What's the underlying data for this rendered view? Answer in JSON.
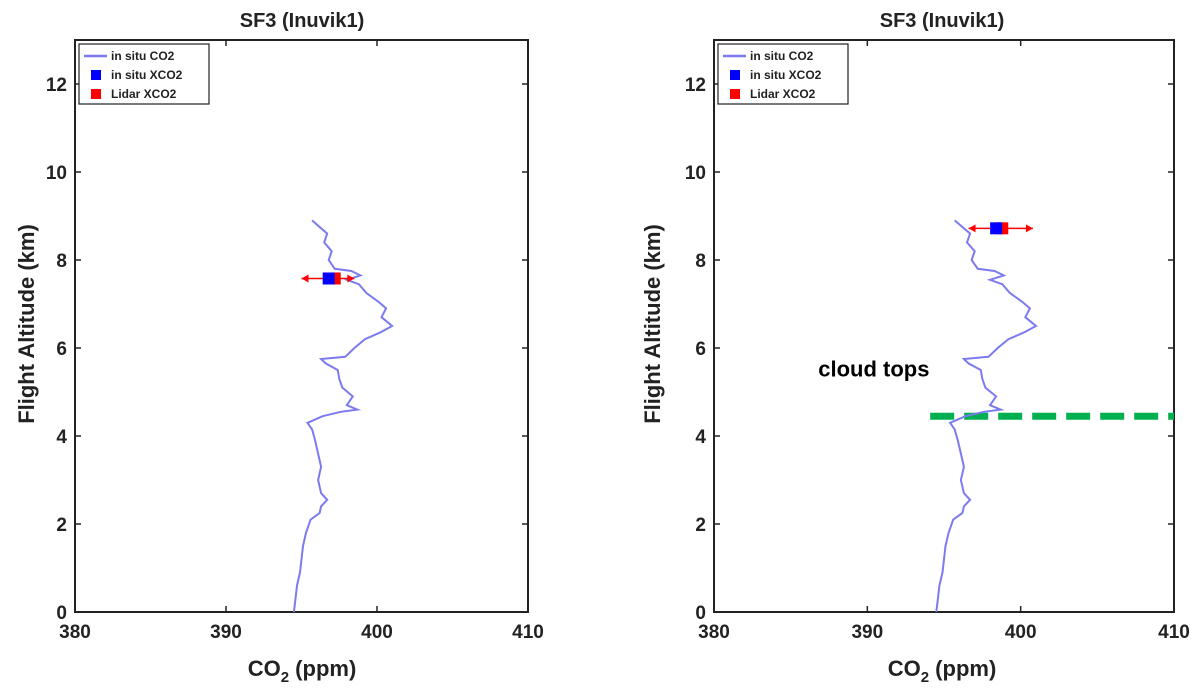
{
  "chart_data": [
    {
      "type": "line",
      "title": "SF3 (Inuvik1)",
      "xlabel": "CO2 (ppm)",
      "ylabel": "Flight Altitude (km)",
      "xlim": [
        380,
        410
      ],
      "ylim": [
        0,
        13
      ],
      "xticks": [
        "380",
        "390",
        "400",
        "410"
      ],
      "yticks": [
        "0",
        "2",
        "4",
        "6",
        "8",
        "10",
        "12"
      ],
      "grid": false,
      "legend_position": "top-left",
      "legend": [
        "in situ CO2",
        "in situ XCO2",
        "Lidar XCO2"
      ],
      "series": [
        {
          "name": "in situ CO2",
          "color": "#7b7bef",
          "points": [
            [
              394.5,
              0.0
            ],
            [
              394.6,
              0.3
            ],
            [
              394.7,
              0.6
            ],
            [
              394.9,
              0.9
            ],
            [
              395.0,
              1.2
            ],
            [
              395.1,
              1.5
            ],
            [
              395.3,
              1.8
            ],
            [
              395.6,
              2.1
            ],
            [
              396.2,
              2.25
            ],
            [
              396.3,
              2.4
            ],
            [
              396.7,
              2.55
            ],
            [
              396.3,
              2.7
            ],
            [
              396.1,
              3.0
            ],
            [
              396.3,
              3.3
            ],
            [
              396.1,
              3.6
            ],
            [
              395.9,
              3.9
            ],
            [
              395.7,
              4.15
            ],
            [
              395.4,
              4.3
            ],
            [
              396.4,
              4.45
            ],
            [
              397.6,
              4.55
            ],
            [
              398.7,
              4.6
            ],
            [
              398.0,
              4.7
            ],
            [
              398.4,
              4.9
            ],
            [
              397.7,
              5.1
            ],
            [
              397.5,
              5.3
            ],
            [
              397.4,
              5.5
            ],
            [
              396.6,
              5.65
            ],
            [
              396.3,
              5.75
            ],
            [
              397.9,
              5.8
            ],
            [
              398.5,
              6.0
            ],
            [
              399.2,
              6.2
            ],
            [
              400.2,
              6.35
            ],
            [
              401.0,
              6.5
            ],
            [
              400.3,
              6.7
            ],
            [
              400.6,
              6.9
            ],
            [
              400.1,
              7.05
            ],
            [
              399.3,
              7.25
            ],
            [
              398.8,
              7.45
            ],
            [
              398.0,
              7.55
            ],
            [
              398.9,
              7.65
            ],
            [
              398.3,
              7.75
            ],
            [
              397.2,
              7.8
            ],
            [
              396.8,
              8.0
            ],
            [
              397.0,
              8.2
            ],
            [
              396.5,
              8.4
            ],
            [
              396.7,
              8.6
            ],
            [
              396.2,
              8.75
            ],
            [
              395.7,
              8.9
            ]
          ]
        },
        {
          "name": "in situ XCO2",
          "color": "#0000ff",
          "points": [
            [
              396.8,
              7.58
            ]
          ]
        },
        {
          "name": "Lidar XCO2",
          "color": "#ff0000",
          "points": [
            [
              397.2,
              7.58
            ]
          ],
          "x_error": [
            395.0,
            398.5
          ]
        }
      ]
    },
    {
      "type": "line",
      "title": "SF3 (Inuvik1)",
      "xlabel": "CO2 (ppm)",
      "ylabel": "Flight Altitude (km)",
      "xlim": [
        380,
        410
      ],
      "ylim": [
        0,
        13
      ],
      "xticks": [
        "380",
        "390",
        "400",
        "410"
      ],
      "yticks": [
        "0",
        "2",
        "4",
        "6",
        "8",
        "10",
        "12"
      ],
      "grid": false,
      "legend_position": "top-left",
      "legend": [
        "in situ CO2",
        "in situ XCO2",
        "Lidar XCO2"
      ],
      "annotation": "cloud tops",
      "cloud_tops_km": 4.45,
      "series": [
        {
          "name": "in situ CO2",
          "color": "#7b7bef",
          "points": [
            [
              394.5,
              0.0
            ],
            [
              394.6,
              0.3
            ],
            [
              394.7,
              0.6
            ],
            [
              394.9,
              0.9
            ],
            [
              395.0,
              1.2
            ],
            [
              395.1,
              1.5
            ],
            [
              395.3,
              1.8
            ],
            [
              395.6,
              2.1
            ],
            [
              396.2,
              2.25
            ],
            [
              396.3,
              2.4
            ],
            [
              396.7,
              2.55
            ],
            [
              396.3,
              2.7
            ],
            [
              396.1,
              3.0
            ],
            [
              396.3,
              3.3
            ],
            [
              396.1,
              3.6
            ],
            [
              395.9,
              3.9
            ],
            [
              395.7,
              4.15
            ],
            [
              395.4,
              4.3
            ],
            [
              396.4,
              4.45
            ],
            [
              397.6,
              4.55
            ],
            [
              398.7,
              4.6
            ],
            [
              398.0,
              4.7
            ],
            [
              398.4,
              4.9
            ],
            [
              397.7,
              5.1
            ],
            [
              397.5,
              5.3
            ],
            [
              397.4,
              5.5
            ],
            [
              396.6,
              5.65
            ],
            [
              396.3,
              5.75
            ],
            [
              397.9,
              5.8
            ],
            [
              398.5,
              6.0
            ],
            [
              399.2,
              6.2
            ],
            [
              400.2,
              6.35
            ],
            [
              401.0,
              6.5
            ],
            [
              400.3,
              6.7
            ],
            [
              400.6,
              6.9
            ],
            [
              400.1,
              7.05
            ],
            [
              399.3,
              7.25
            ],
            [
              398.8,
              7.45
            ],
            [
              398.0,
              7.55
            ],
            [
              398.9,
              7.65
            ],
            [
              398.3,
              7.75
            ],
            [
              397.2,
              7.8
            ],
            [
              396.8,
              8.0
            ],
            [
              397.0,
              8.2
            ],
            [
              396.5,
              8.4
            ],
            [
              396.7,
              8.6
            ],
            [
              396.2,
              8.75
            ],
            [
              395.7,
              8.9
            ]
          ]
        },
        {
          "name": "in situ XCO2",
          "color": "#0000ff",
          "points": [
            [
              398.4,
              8.72
            ]
          ]
        },
        {
          "name": "Lidar XCO2",
          "color": "#ff0000",
          "points": [
            [
              398.8,
              8.72
            ]
          ],
          "x_error": [
            396.6,
            400.8
          ]
        }
      ]
    }
  ]
}
